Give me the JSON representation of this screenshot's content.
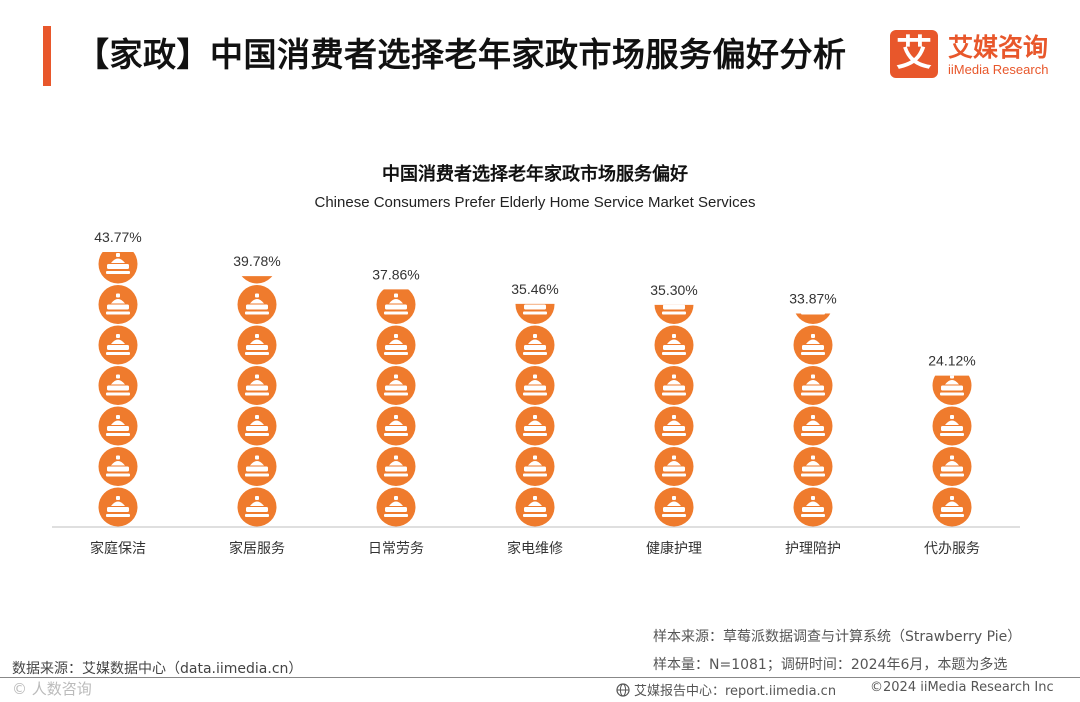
{
  "header": {
    "title": "【家政】中国消费者选择老年家政市场服务偏好分析"
  },
  "logo": {
    "mark": "艾",
    "name_cn": "艾媒咨询",
    "name_en": "iiMedia Research"
  },
  "colors": {
    "accent": "#e8572b",
    "bead": "#ef7b2d",
    "icon": "#ffffff",
    "baseline": "#cccccc"
  },
  "chart_data": {
    "type": "bar",
    "style": "pictograph",
    "icon": "cleaning-brush-icon",
    "title": "中国消费者选择老年家政市场服务偏好",
    "subtitle": "Chinese Consumers Prefer Elderly Home Service Market Services",
    "categories": [
      "家庭保洁",
      "家居服务",
      "日常劳务",
      "家电维修",
      "健康护理",
      "护理陪护",
      "代办服务"
    ],
    "values": [
      43.77,
      39.78,
      37.86,
      35.46,
      35.3,
      33.87,
      24.12
    ],
    "value_labels": [
      "43.77%",
      "39.78%",
      "37.86%",
      "35.46%",
      "35.30%",
      "33.87%",
      "24.12%"
    ],
    "unit": "%",
    "ylim": [
      0,
      45
    ],
    "grid": false
  },
  "source": {
    "left": "数据来源：艾媒数据中心（data.iimedia.cn）",
    "sample_source": "样本来源：草莓派数据调查与计算系统（Strawberry Pie）",
    "sample_info": "样本量：N=1081；调研时间：2024年6月，本题为多选"
  },
  "footer": {
    "watermark": "© 人数咨询",
    "center": "艾媒报告中心：report.iimedia.cn",
    "right": "©2024  iiMedia Research Inc"
  }
}
